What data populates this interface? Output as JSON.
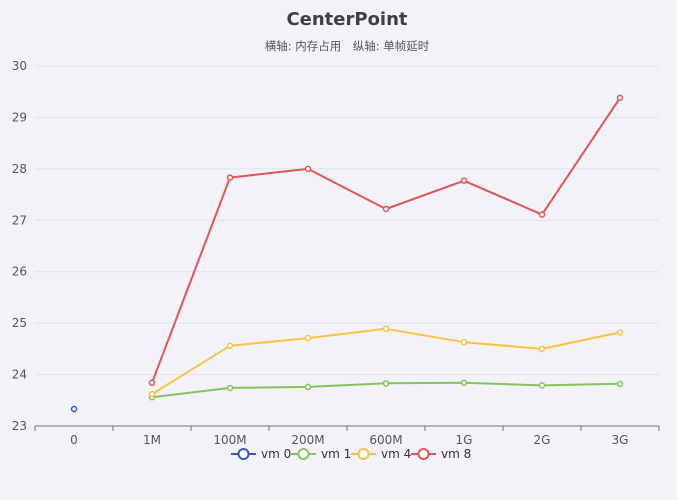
{
  "chart_data": {
    "type": "line",
    "title": "CenterPoint",
    "subtitle": "横轴: 内存占用　纵轴: 单帧延时",
    "categories": [
      "0",
      "1M",
      "100M",
      "200M",
      "600M",
      "1G",
      "2G",
      "3G"
    ],
    "ylim": [
      23,
      30
    ],
    "yticks": [
      23,
      24,
      25,
      26,
      27,
      28,
      29,
      30
    ],
    "grid": true,
    "legend_position": "bottom-center",
    "series": [
      {
        "name": "vm 0",
        "color": "#3a58b5",
        "values": [
          23.33,
          null,
          null,
          null,
          null,
          null,
          null,
          null
        ]
      },
      {
        "name": "vm 1",
        "color": "#85c35c",
        "values": [
          null,
          23.56,
          23.74,
          23.76,
          23.83,
          23.84,
          23.79,
          23.82
        ]
      },
      {
        "name": "vm 4",
        "color": "#f8c245",
        "values": [
          null,
          23.62,
          24.56,
          24.71,
          24.89,
          24.63,
          24.5,
          24.82
        ]
      },
      {
        "name": "vm 8",
        "color": "#e05555",
        "values": [
          null,
          23.84,
          27.83,
          28.0,
          27.22,
          27.77,
          27.11,
          29.38
        ]
      }
    ]
  }
}
